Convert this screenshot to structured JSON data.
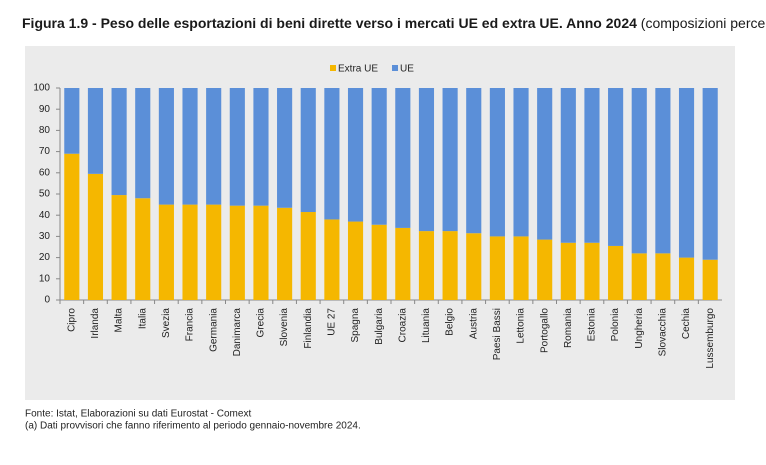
{
  "chart_data": {
    "type": "stacked-bar",
    "title": "Figura 1.9 - Peso delle esportazioni di beni dirette verso i mercati UE ed extra UE. Anno 2024",
    "subtitle": "(composizioni percentuali) (a)",
    "categories": [
      "Cipro",
      "Irlanda",
      "Malta",
      "Italia",
      "Svezia",
      "Francia",
      "Germania",
      "Danimarca",
      "Grecia",
      "Slovenia",
      "Finlandia",
      "UE 27",
      "Spagna",
      "Bulgaria",
      "Croazia",
      "Lituania",
      "Belgio",
      "Austria",
      "Paesi Bassi",
      "Lettonia",
      "Portogallo",
      "Romania",
      "Estonia",
      "Polonia",
      "Ungheria",
      "Slovacchia",
      "Cechia",
      "Lussemburgo"
    ],
    "series": [
      {
        "name": "Extra UE",
        "color": "#f5b700",
        "values": [
          69,
          59.5,
          49.5,
          48,
          45,
          45,
          45,
          44.5,
          44.5,
          43.5,
          41.5,
          38,
          37,
          35.5,
          34,
          32.5,
          32.5,
          31.5,
          30,
          30,
          28.5,
          27,
          27,
          25.5,
          22,
          22,
          20,
          19
        ]
      },
      {
        "name": "UE",
        "color": "#5b8fd8",
        "values": [
          31,
          40.5,
          50.5,
          52,
          55,
          55,
          55,
          55.5,
          55.5,
          56.5,
          58.5,
          62,
          63,
          64.5,
          66,
          67.5,
          67.5,
          68.5,
          70,
          70,
          71.5,
          73,
          73,
          74.5,
          78,
          78,
          80,
          81
        ]
      }
    ],
    "ylim": [
      0,
      100
    ],
    "yticks": [
      0,
      10,
      20,
      30,
      40,
      50,
      60,
      70,
      80,
      90,
      100
    ],
    "grid": false,
    "legend": "top",
    "notes": [
      "Fonte: Istat, Elaborazioni su dati Eurostat - Comext",
      "(a) Dati provvisori che fanno riferimento al periodo gennaio-novembre 2024."
    ]
  }
}
